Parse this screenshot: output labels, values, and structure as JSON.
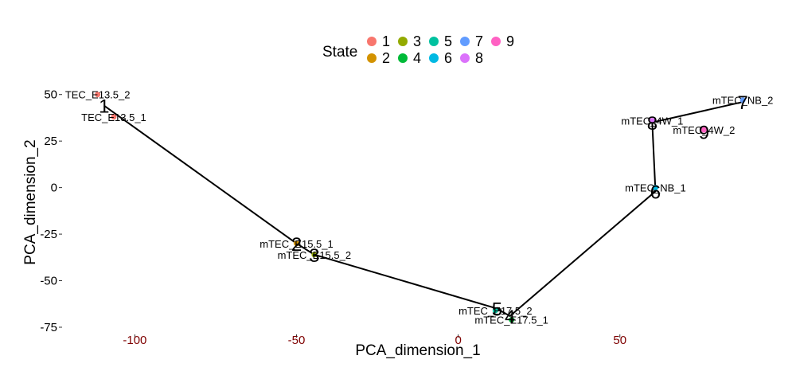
{
  "chart_data": {
    "type": "scatter",
    "xlabel": "PCA_dimension_1",
    "ylabel": "PCA_dimension_2",
    "xlim": [
      -122,
      102
    ],
    "ylim": [
      -78,
      58
    ],
    "xticks": [
      -100,
      -50,
      0,
      50
    ],
    "xtick_labels": [
      "-100",
      "-50",
      "0",
      "50"
    ],
    "yticks": [
      50,
      25,
      0,
      -25,
      -50,
      -75
    ],
    "ytick_labels": [
      "50",
      "25",
      "0",
      "-25",
      "-50",
      "-75"
    ],
    "grid": false,
    "legend": {
      "title": "State",
      "placement": "top",
      "entries": [
        {
          "label": "1",
          "color": "#F8766D"
        },
        {
          "label": "2",
          "color": "#D39200"
        },
        {
          "label": "3",
          "color": "#93AA00"
        },
        {
          "label": "4",
          "color": "#00BA38"
        },
        {
          "label": "5",
          "color": "#00C19F"
        },
        {
          "label": "6",
          "color": "#00B9E3"
        },
        {
          "label": "7",
          "color": "#619CFF"
        },
        {
          "label": "8",
          "color": "#DB72FB"
        },
        {
          "label": "9",
          "color": "#FF61C3"
        }
      ]
    },
    "samples": [
      {
        "name": "mTEC_E13.5_2",
        "display": "TEC_E13.5_2",
        "x": -111.5,
        "y": 50,
        "state": "1"
      },
      {
        "name": "mTEC_E13.5_1",
        "display": "TEC_E13.5_1",
        "x": -106.5,
        "y": 38,
        "state": "1"
      },
      {
        "name": "mTEC_E15.5_1",
        "display": "mTEC_E15.5_1",
        "x": -50,
        "y": -30,
        "state": "2"
      },
      {
        "name": "mTEC_E15.5_2",
        "display": "mTEC_E15.5_2",
        "x": -44.5,
        "y": -36,
        "state": "3"
      },
      {
        "name": "mTEC_E17.5_2",
        "display": "mTEC_E17.5_2",
        "x": 11.5,
        "y": -66,
        "state": "5"
      },
      {
        "name": "mTEC_E17.5_1",
        "display": "mTEC_E17.5_1",
        "x": 16.5,
        "y": -71,
        "state": "4"
      },
      {
        "name": "mTEC_NB_1",
        "display": "mTEC_NB_1",
        "x": 61,
        "y": 0,
        "state": "6"
      },
      {
        "name": "mTEC_4W_1",
        "display": "mTEC_4W_1",
        "x": 60,
        "y": 36,
        "state": "8"
      },
      {
        "name": "mTEC_4W_2",
        "display": "mTEC_4W_2",
        "x": 76,
        "y": 31,
        "state": "9"
      },
      {
        "name": "mTEC_NB_2",
        "display": "mTEC_NB_2",
        "x": 88,
        "y": 47,
        "state": "7"
      }
    ],
    "trajectory_nodes": [
      {
        "label": "1",
        "x": -109.5,
        "y": 44
      },
      {
        "label": "2",
        "x": -50,
        "y": -30
      },
      {
        "label": "3",
        "x": -44.5,
        "y": -36
      },
      {
        "label": "5",
        "x": 12,
        "y": -65
      },
      {
        "label": "4",
        "x": 16,
        "y": -69
      },
      {
        "label": "6",
        "x": 61,
        "y": -2
      },
      {
        "label": "8",
        "x": 60,
        "y": 35
      },
      {
        "label": "9",
        "x": 76,
        "y": 30
      },
      {
        "label": "7",
        "x": 88,
        "y": 46
      }
    ],
    "trajectory_path": [
      [
        -109.5,
        44
      ],
      [
        -50,
        -30
      ],
      [
        -44.5,
        -36
      ],
      [
        12,
        -65
      ],
      [
        16,
        -69
      ],
      [
        61,
        -2
      ],
      [
        60,
        35
      ],
      [
        88,
        46
      ]
    ]
  }
}
